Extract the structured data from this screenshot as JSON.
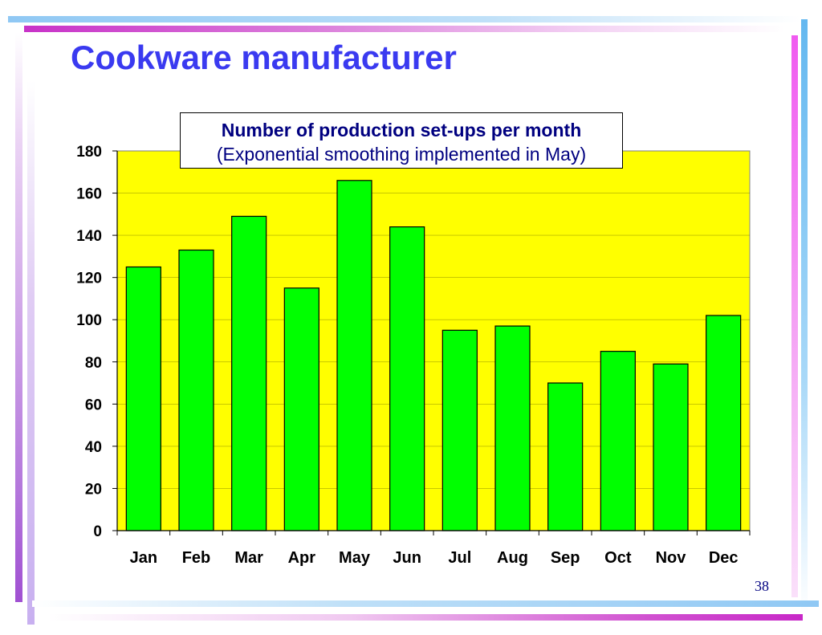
{
  "slide": {
    "title": "Cookware manufacturer",
    "page_number": "38",
    "colors": {
      "title": "#3a3af0",
      "text": "#000080",
      "plot_background": "#ffff00",
      "bar_fill": "#00ff00",
      "bar_stroke": "#000000"
    }
  },
  "chart_data": {
    "type": "bar",
    "title": "Number of production set-ups per month",
    "subtitle": "(Exponential smoothing implemented in May)",
    "categories": [
      "Jan",
      "Feb",
      "Mar",
      "Apr",
      "May",
      "Jun",
      "Jul",
      "Aug",
      "Sep",
      "Oct",
      "Nov",
      "Dec"
    ],
    "values": [
      125,
      133,
      149,
      115,
      166,
      144,
      95,
      97,
      70,
      85,
      79,
      102
    ],
    "xlabel": "",
    "ylabel": "",
    "ylim": [
      0,
      180
    ],
    "yticks": [
      "0",
      "20",
      "40",
      "60",
      "80",
      "100",
      "120",
      "140",
      "160",
      "180"
    ],
    "grid": true,
    "legend": "none"
  }
}
